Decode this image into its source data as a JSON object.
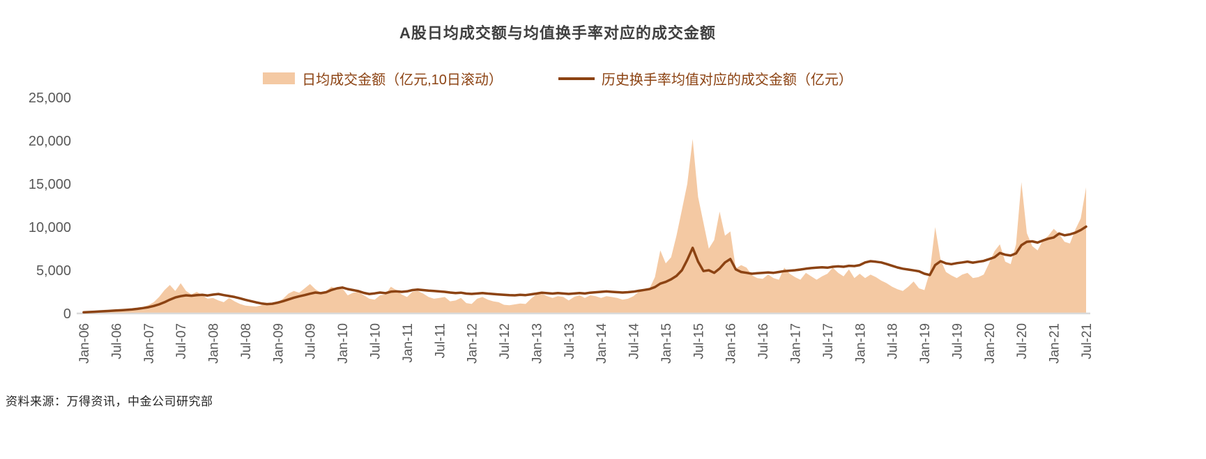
{
  "title": "A股日均成交额与均值换手率对应的成交金额",
  "source": "资料来源：万得资讯，中金公司研究部",
  "colors": {
    "area": "#F4C9A3",
    "line": "#8C4313",
    "legend_text": "#8C4313",
    "title_text": "#3F3F3F",
    "axis_text": "#595959",
    "axis_line": "#D9D9D9",
    "source_text": "#262626"
  },
  "chart_data": {
    "type": "area",
    "title": "A股日均成交额与均值换手率对应的成交金额",
    "x_start": "2006-01",
    "x_interval_months": 1,
    "x_tick_every": 6,
    "x_tick_labels": [
      "Jan-06",
      "Jul-06",
      "Jan-07",
      "Jul-07",
      "Jan-08",
      "Jul-08",
      "Jan-09",
      "Jul-09",
      "Jan-10",
      "Jul-10",
      "Jan-11",
      "Jul-11",
      "Jan-12",
      "Jul-12",
      "Jan-13",
      "Jul-13",
      "Jan-14",
      "Jul-14",
      "Jan-15",
      "Jul-15",
      "Jan-16",
      "Jul-16",
      "Jan-17",
      "Jul-17",
      "Jan-18",
      "Jul-18",
      "Jan-19",
      "Jul-19",
      "Jan-20",
      "Jul-20",
      "Jan-21",
      "Jul-21"
    ],
    "ylim": [
      0,
      25000
    ],
    "y_ticks": [
      0,
      5000,
      10000,
      15000,
      20000,
      25000
    ],
    "y_tick_labels": [
      "0",
      "5,000",
      "10,000",
      "15,000",
      "20,000",
      "25,000"
    ],
    "grid": false,
    "legend_position": "top",
    "series": [
      {
        "name": "日均成交金额（亿元,10日滚动）",
        "type": "area",
        "color": "#F4C9A3",
        "values": [
          120,
          160,
          230,
          330,
          420,
          380,
          320,
          290,
          270,
          340,
          520,
          750,
          950,
          1300,
          1900,
          2700,
          3300,
          2600,
          3500,
          2600,
          2200,
          2500,
          2100,
          1700,
          1800,
          1500,
          1300,
          1800,
          1400,
          1100,
          900,
          850,
          800,
          950,
          1050,
          1150,
          1300,
          1700,
          2300,
          2600,
          2400,
          2900,
          3400,
          2800,
          2400,
          2600,
          3100,
          2800,
          2900,
          2100,
          2400,
          2500,
          2100,
          1700,
          1600,
          2100,
          2200,
          3100,
          2700,
          2200,
          1900,
          2500,
          2600,
          2300,
          1900,
          1700,
          1800,
          1900,
          1400,
          1500,
          1800,
          1200,
          1100,
          1700,
          1900,
          1600,
          1400,
          1300,
          1000,
          950,
          1050,
          1150,
          1100,
          1700,
          2200,
          2300,
          2000,
          1800,
          2000,
          1900,
          1500,
          1900,
          2100,
          1800,
          2100,
          2000,
          1800,
          2000,
          1900,
          1800,
          1600,
          1700,
          2000,
          2500,
          2700,
          2900,
          4200,
          7300,
          5800,
          6500,
          9000,
          12000,
          15000,
          20200,
          13500,
          10500,
          7500,
          8500,
          11800,
          9000,
          9500,
          5200,
          5600,
          5300,
          4400,
          4100,
          4000,
          4500,
          4100,
          3900,
          5300,
          4600,
          4200,
          3900,
          4700,
          4300,
          3900,
          4300,
          4600,
          5300,
          4700,
          4300,
          5100,
          4100,
          4600,
          4100,
          4500,
          4200,
          3800,
          3500,
          3100,
          2800,
          2600,
          3100,
          3700,
          2900,
          2700,
          4800,
          10000,
          6200,
          4800,
          4400,
          4100,
          4500,
          4700,
          4100,
          4200,
          4500,
          5800,
          7200,
          8000,
          6000,
          5700,
          8000,
          15200,
          9300,
          7800,
          7300,
          8500,
          9000,
          9800,
          9200,
          8300,
          8100,
          9700,
          11000,
          14600
        ]
      },
      {
        "name": "历史换手率均值对应的成交金额（亿元）",
        "type": "line",
        "color": "#8C4313",
        "values": [
          130,
          160,
          195,
          230,
          265,
          300,
          335,
          370,
          410,
          460,
          530,
          620,
          720,
          860,
          1050,
          1300,
          1600,
          1850,
          2000,
          2100,
          2050,
          2120,
          2150,
          2080,
          2180,
          2250,
          2120,
          2020,
          1900,
          1750,
          1580,
          1430,
          1280,
          1150,
          1080,
          1120,
          1250,
          1420,
          1620,
          1820,
          1980,
          2120,
          2280,
          2420,
          2350,
          2460,
          2720,
          2900,
          3000,
          2820,
          2700,
          2580,
          2380,
          2250,
          2320,
          2420,
          2350,
          2520,
          2560,
          2500,
          2560,
          2700,
          2760,
          2700,
          2640,
          2600,
          2550,
          2500,
          2420,
          2360,
          2400,
          2300,
          2260,
          2310,
          2360,
          2300,
          2250,
          2200,
          2160,
          2110,
          2100,
          2160,
          2120,
          2210,
          2300,
          2400,
          2350,
          2300,
          2360,
          2310,
          2260,
          2310,
          2360,
          2310,
          2400,
          2450,
          2500,
          2550,
          2500,
          2460,
          2420,
          2460,
          2520,
          2620,
          2720,
          2820,
          3050,
          3450,
          3650,
          3950,
          4350,
          5000,
          6200,
          7600,
          6000,
          4900,
          5000,
          4700,
          5200,
          5900,
          6300,
          5100,
          4800,
          4700,
          4600,
          4650,
          4700,
          4750,
          4700,
          4800,
          4900,
          4950,
          5000,
          5080,
          5180,
          5250,
          5300,
          5350,
          5300,
          5400,
          5450,
          5400,
          5520,
          5480,
          5600,
          5900,
          6050,
          5980,
          5900,
          5720,
          5520,
          5320,
          5180,
          5080,
          4980,
          4880,
          4600,
          4450,
          5600,
          6050,
          5800,
          5700,
          5820,
          5900,
          6000,
          5880,
          5980,
          6080,
          6280,
          6500,
          7000,
          6800,
          6700,
          6950,
          7900,
          8300,
          8350,
          8200,
          8450,
          8650,
          8800,
          9250,
          9050,
          9150,
          9350,
          9650,
          10050
        ]
      }
    ]
  }
}
